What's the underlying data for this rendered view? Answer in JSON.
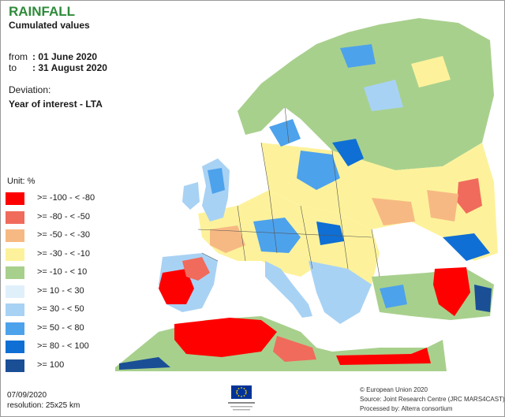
{
  "title": "RAINFALL",
  "subtitle": "Cumulated values",
  "period": {
    "from_label": "from",
    "from_value": ": 01 June 2020",
    "to_label": "to",
    "to_value": ": 31 August 2020"
  },
  "deviation": {
    "label": "Deviation:",
    "value": "Year of interest - LTA"
  },
  "legend": {
    "unit": "Unit:  %",
    "classes": [
      {
        "label": ">= -100 - < -80",
        "color": "#ff0000"
      },
      {
        "label": ">= -80 - < -50",
        "color": "#f06b5c"
      },
      {
        "label": ">= -50 - < -30",
        "color": "#f7b983"
      },
      {
        "label": ">= -30 - < -10",
        "color": "#fdf29b"
      },
      {
        "label": ">= -10 - < 10",
        "color": "#a8d08d"
      },
      {
        "label": ">= 10 - < 30",
        "color": "#e0f0fb"
      },
      {
        "label": ">= 30 - < 50",
        "color": "#a8d2f4"
      },
      {
        "label": ">= 50 - < 80",
        "color": "#4da2ec"
      },
      {
        "label": ">= 80 - < 100",
        "color": "#0f6fd4"
      },
      {
        "label": ">= 100",
        "color": "#1a4f96"
      }
    ]
  },
  "footer": {
    "date": "07/09/2020",
    "resolution": "resolution:  25x25 km",
    "source_lines": [
      "© European Union 2020",
      "Source: Joint Research Centre (JRC MARS4CAST)",
      "Processed by: Alterra consortium"
    ]
  },
  "colors": {
    "sea": "#ffffff",
    "outside_area": "#c8c8c8",
    "borders": "#555555"
  }
}
